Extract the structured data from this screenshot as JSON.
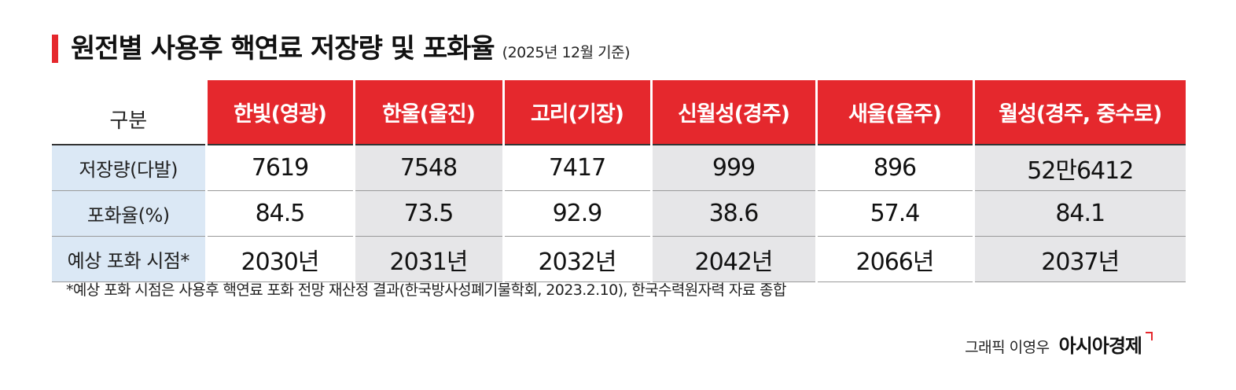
{
  "title": {
    "main": "원전별 사용후 핵연료 저장량 및 포화율",
    "sub": "(2025년 12월 기준)",
    "accent_color": "#e5282d"
  },
  "chart_data": {
    "type": "table",
    "corner_label": "구분",
    "columns": [
      "한빛(영광)",
      "한울(울진)",
      "고리(기장)",
      "신월성(경주)",
      "새울(울주)",
      "월성(경주, 중수로)"
    ],
    "rows": [
      {
        "label": "저장량(다발)",
        "values": [
          "7619",
          "7548",
          "7417",
          "999",
          "896",
          "52만6412"
        ]
      },
      {
        "label": "포화율(%)",
        "values": [
          "84.5",
          "73.5",
          "92.9",
          "38.6",
          "57.4",
          "84.1"
        ]
      },
      {
        "label": "예상 포화 시점*",
        "values": [
          "2030년",
          "2031년",
          "2032년",
          "2042년",
          "2066년",
          "2037년"
        ]
      }
    ],
    "colors": {
      "header_bg": "#e5282d",
      "row_label_bg": "#dbe8f5",
      "alt_column_bg": "#e6e6e8"
    }
  },
  "footnote": "*예상 포화 시점은 사용후 핵연료 포화 전망 재산정 결과(한국방사성폐기물학회, 2023.2.10), 한국수력원자력 자료 종합",
  "credit": {
    "byline": "그래픽 이영우",
    "brand": "아시아경제"
  }
}
